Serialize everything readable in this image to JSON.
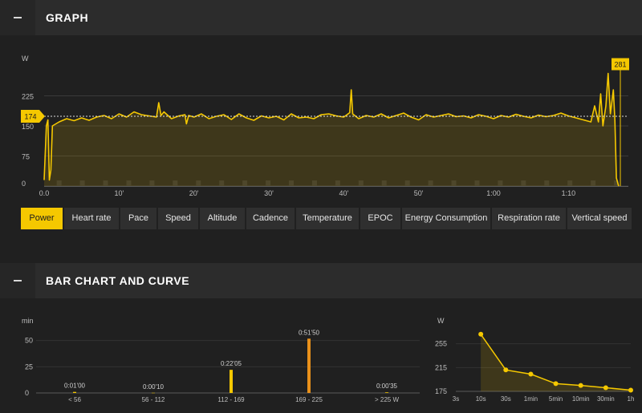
{
  "sections": {
    "graph": {
      "title": "GRAPH"
    },
    "bars": {
      "title": "BAR CHART AND CURVE"
    }
  },
  "tabs": [
    {
      "label": "Power",
      "active": true
    },
    {
      "label": "Heart rate"
    },
    {
      "label": "Pace"
    },
    {
      "label": "Speed"
    },
    {
      "label": "Altitude"
    },
    {
      "label": "Cadence"
    },
    {
      "label": "Temperature"
    },
    {
      "label": "EPOC"
    },
    {
      "label": "Energy Consumption"
    },
    {
      "label": "Respiration rate"
    },
    {
      "label": "Vertical speed"
    }
  ],
  "colors": {
    "accent": "#f5c800",
    "bar_highlight": "#e8901a",
    "background": "#202020",
    "header": "#2c2c2c"
  },
  "chart_data": [
    {
      "type": "area",
      "ylabel": "W",
      "ylim": [
        0,
        300
      ],
      "yticks": [
        0,
        75,
        150,
        225
      ],
      "xlim": [
        0,
        78
      ],
      "xticks": [
        "0.0",
        "10'",
        "20'",
        "30'",
        "40'",
        "50'",
        "1:00",
        "1:10"
      ],
      "xtick_values": [
        0,
        10,
        20,
        30,
        40,
        50,
        60,
        70
      ],
      "avg_label": "174",
      "avg_value": 174,
      "max_label": "281",
      "max_value": 281,
      "points": [
        {
          "x": 0,
          "y": 15
        },
        {
          "x": 0.3,
          "y": 150
        },
        {
          "x": 0.5,
          "y": 165
        },
        {
          "x": 0.7,
          "y": 15
        },
        {
          "x": 0.9,
          "y": 40
        },
        {
          "x": 1.1,
          "y": 150
        },
        {
          "x": 2,
          "y": 160
        },
        {
          "x": 3,
          "y": 168
        },
        {
          "x": 4,
          "y": 163
        },
        {
          "x": 5,
          "y": 170
        },
        {
          "x": 6,
          "y": 164
        },
        {
          "x": 7,
          "y": 172
        },
        {
          "x": 8,
          "y": 176
        },
        {
          "x": 9,
          "y": 168
        },
        {
          "x": 10,
          "y": 180
        },
        {
          "x": 11,
          "y": 172
        },
        {
          "x": 12,
          "y": 185
        },
        {
          "x": 13,
          "y": 178
        },
        {
          "x": 14,
          "y": 175
        },
        {
          "x": 15,
          "y": 172
        },
        {
          "x": 15.3,
          "y": 208
        },
        {
          "x": 15.6,
          "y": 176
        },
        {
          "x": 16,
          "y": 185
        },
        {
          "x": 17,
          "y": 168
        },
        {
          "x": 18,
          "y": 175
        },
        {
          "x": 18.8,
          "y": 178
        },
        {
          "x": 19,
          "y": 155
        },
        {
          "x": 19.3,
          "y": 176
        },
        {
          "x": 20,
          "y": 172
        },
        {
          "x": 21,
          "y": 180
        },
        {
          "x": 22,
          "y": 168
        },
        {
          "x": 23,
          "y": 174
        },
        {
          "x": 24,
          "y": 178
        },
        {
          "x": 25,
          "y": 166
        },
        {
          "x": 26,
          "y": 180
        },
        {
          "x": 27,
          "y": 170
        },
        {
          "x": 28,
          "y": 164
        },
        {
          "x": 29,
          "y": 175
        },
        {
          "x": 30,
          "y": 170
        },
        {
          "x": 31,
          "y": 174
        },
        {
          "x": 32,
          "y": 165
        },
        {
          "x": 33,
          "y": 180
        },
        {
          "x": 34,
          "y": 170
        },
        {
          "x": 35,
          "y": 172
        },
        {
          "x": 36,
          "y": 168
        },
        {
          "x": 37,
          "y": 178
        },
        {
          "x": 38,
          "y": 180
        },
        {
          "x": 39,
          "y": 175
        },
        {
          "x": 40,
          "y": 172
        },
        {
          "x": 40.8,
          "y": 183
        },
        {
          "x": 41,
          "y": 240
        },
        {
          "x": 41.2,
          "y": 180
        },
        {
          "x": 42,
          "y": 168
        },
        {
          "x": 43,
          "y": 176
        },
        {
          "x": 44,
          "y": 172
        },
        {
          "x": 45,
          "y": 180
        },
        {
          "x": 46,
          "y": 170
        },
        {
          "x": 47,
          "y": 176
        },
        {
          "x": 48,
          "y": 182
        },
        {
          "x": 49,
          "y": 172
        },
        {
          "x": 50,
          "y": 165
        },
        {
          "x": 51,
          "y": 178
        },
        {
          "x": 52,
          "y": 172
        },
        {
          "x": 53,
          "y": 176
        },
        {
          "x": 54,
          "y": 180
        },
        {
          "x": 55,
          "y": 173
        },
        {
          "x": 56,
          "y": 175
        },
        {
          "x": 57,
          "y": 170
        },
        {
          "x": 58,
          "y": 178
        },
        {
          "x": 59,
          "y": 174
        },
        {
          "x": 60,
          "y": 168
        },
        {
          "x": 61,
          "y": 176
        },
        {
          "x": 62,
          "y": 172
        },
        {
          "x": 63,
          "y": 179
        },
        {
          "x": 64,
          "y": 174
        },
        {
          "x": 65,
          "y": 170
        },
        {
          "x": 66,
          "y": 177
        },
        {
          "x": 67,
          "y": 173
        },
        {
          "x": 68,
          "y": 176
        },
        {
          "x": 69,
          "y": 182
        },
        {
          "x": 70,
          "y": 175
        },
        {
          "x": 71,
          "y": 170
        },
        {
          "x": 72,
          "y": 165
        },
        {
          "x": 73,
          "y": 160
        },
        {
          "x": 73.5,
          "y": 200
        },
        {
          "x": 74,
          "y": 160
        },
        {
          "x": 74.3,
          "y": 230
        },
        {
          "x": 74.6,
          "y": 150
        },
        {
          "x": 75,
          "y": 200
        },
        {
          "x": 75.3,
          "y": 281
        },
        {
          "x": 75.6,
          "y": 180
        },
        {
          "x": 76,
          "y": 240
        },
        {
          "x": 76.2,
          "y": 165
        },
        {
          "x": 76.4,
          "y": 20
        },
        {
          "x": 76.7,
          "y": 0
        }
      ]
    },
    {
      "type": "bar",
      "ylabel": "min",
      "ylim": [
        0,
        62
      ],
      "yticks": [
        0,
        25,
        50
      ],
      "categories": [
        "< 56",
        "56 - 112",
        "112 - 169",
        "169 - 225",
        "> 225 W"
      ],
      "values": [
        1.0,
        0.17,
        22.08,
        51.83,
        0.58
      ],
      "value_labels": [
        "0:01'00",
        "0:00'10",
        "0:22'05",
        "0:51'50",
        "0:00'35"
      ]
    },
    {
      "type": "area",
      "ylabel": "W",
      "ylim": [
        175,
        295
      ],
      "yticks": [
        175,
        215,
        255
      ],
      "categories": [
        "3s",
        "10s",
        "30s",
        "1min",
        "5min",
        "10min",
        "30min",
        "1h"
      ],
      "values": [
        null,
        271,
        211,
        204,
        188,
        185,
        181,
        177
      ]
    }
  ]
}
